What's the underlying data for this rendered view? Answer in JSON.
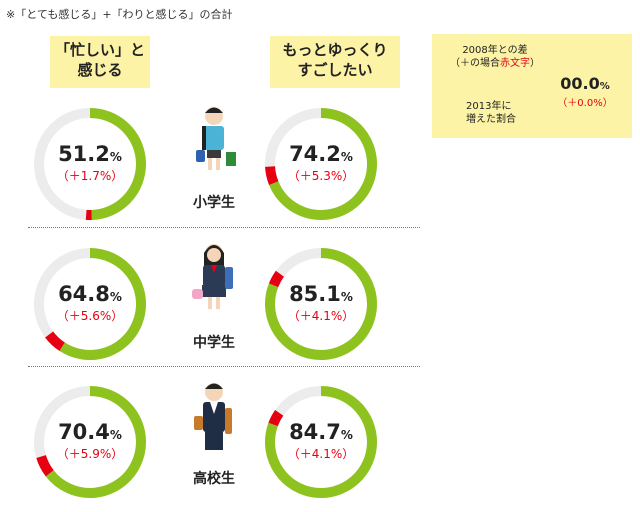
{
  "note": "※「とても感じる」+「わりと感じる」の合計",
  "columns": [
    {
      "label_line1": "「忙しい」と",
      "label_line2": "感じる"
    },
    {
      "label_line1": "もっとゆっくり",
      "label_line2": "すごしたい"
    }
  ],
  "legend": {
    "line1": "2008年との差",
    "line2_prefix": "（＋の場合",
    "line2_red": "赤文字",
    "line2_suffix": "）",
    "line3": "2013年に",
    "line4": "増えた割合",
    "example_value": "00.0",
    "example_unit": "%",
    "example_diff": "（＋0.0%）"
  },
  "colors": {
    "main": "#8dc21f",
    "increase": "#e60012",
    "track": "#ececec",
    "legend_main": "#b3b08a",
    "legend_bg": "#fdf3a6"
  },
  "chart_data": {
    "type": "donut",
    "unit": "%",
    "categories": [
      "小学生",
      "中学生",
      "高校生"
    ],
    "series": [
      {
        "name": "「忙しい」と感じる",
        "values": [
          51.2,
          64.8,
          70.4
        ],
        "diff_vs_2008": [
          1.7,
          5.6,
          5.9
        ],
        "labels": [
          "51.2",
          "64.8",
          "70.4"
        ],
        "diff_labels": [
          "（＋1.7%）",
          "（＋5.6%）",
          "（＋5.9%）"
        ]
      },
      {
        "name": "もっとゆっくりすごしたい",
        "values": [
          74.2,
          85.1,
          84.7
        ],
        "diff_vs_2008": [
          5.3,
          4.1,
          4.1
        ],
        "labels": [
          "74.2",
          "85.1",
          "84.7"
        ],
        "diff_labels": [
          "（＋5.3%）",
          "（＋4.1%）",
          "（＋4.1%）"
        ]
      }
    ]
  }
}
